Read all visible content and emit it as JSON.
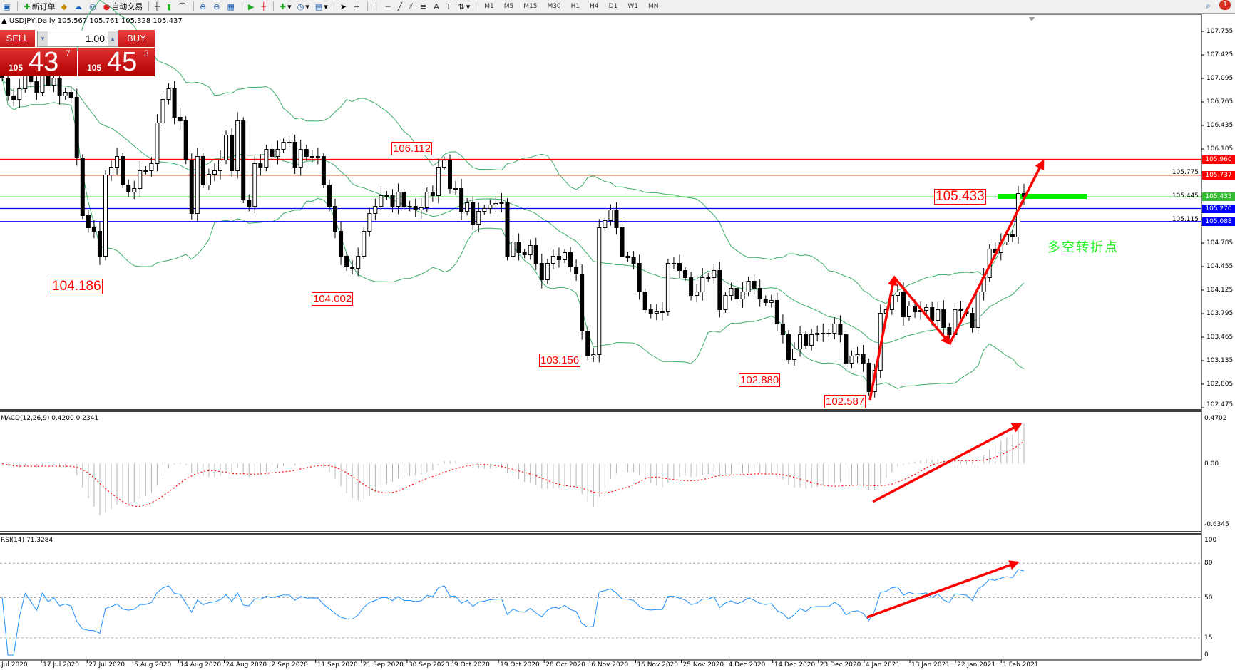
{
  "toolbar": {
    "new_order": "新订单",
    "auto_trading": "自动交易",
    "timeframes": [
      "M1",
      "M5",
      "M15",
      "M30",
      "H1",
      "H4",
      "D1",
      "W1",
      "MN"
    ],
    "notification_count": "1"
  },
  "chart": {
    "title": "USDJPY,Daily",
    "ohlc": "105.567 105.761 105.328 105.437"
  },
  "trade_panel": {
    "sell_label": "SELL",
    "buy_label": "BUY",
    "lot": "1.00",
    "sell_small": "105",
    "sell_main": "43",
    "sell_sup": "7",
    "buy_small": "105",
    "buy_main": "45",
    "buy_sup": "3"
  },
  "price_axis": {
    "ticks": [
      "107.755",
      "107.425",
      "107.095",
      "106.765",
      "106.435",
      "106.105",
      "105.775",
      "105.445",
      "105.115",
      "104.785",
      "104.455",
      "104.125",
      "103.795",
      "103.465",
      "103.135",
      "102.805",
      "102.475"
    ]
  },
  "levels": [
    {
      "price": "105.960",
      "color": "#ff0000"
    },
    {
      "price": "105.737",
      "color": "#ff0000"
    },
    {
      "price": "105.433",
      "color": "#33bb33"
    },
    {
      "price": "105.270",
      "color": "#0000ff"
    },
    {
      "price": "105.088",
      "color": "#0000ff"
    }
  ],
  "annotations": {
    "labels": [
      "104.186",
      "104.002",
      "103.156",
      "106.112",
      "102.880",
      "102.587",
      "105.433"
    ],
    "note": "多空转折点",
    "arrow_color": "#ff0000",
    "marker_color": "#00ee00"
  },
  "macd": {
    "label": "MACD(12,26,9) 0.4200 0.2341",
    "ticks": [
      "0.4702",
      "0.00",
      "-0.6345"
    ]
  },
  "rsi": {
    "label": "RSI(14) 71.3284",
    "ticks": [
      "100",
      "80",
      "50",
      "15",
      "0"
    ]
  },
  "dates": [
    "Jul 2020",
    "17 Jul 2020",
    "27 Jul 2020",
    "5 Aug 2020",
    "14 Aug 2020",
    "24 Aug 2020",
    "2 Sep 2020",
    "11 Sep 2020",
    "21 Sep 2020",
    "30 Sep 2020",
    "9 Oct 2020",
    "19 Oct 2020",
    "28 Oct 2020",
    "6 Nov 2020",
    "16 Nov 2020",
    "25 Nov 2020",
    "4 Dec 2020",
    "14 Dec 2020",
    "23 Dec 2020",
    "4 Jan 2021",
    "13 Jan 2021",
    "22 Jan 2021",
    "1 Feb 2021"
  ],
  "chart_data": {
    "type": "candlestick",
    "symbol": "USDJPY",
    "timeframe": "Daily",
    "ylim": [
      102.475,
      107.755
    ],
    "indicators": [
      "Bollinger Bands",
      "MACD(12,26,9)",
      "RSI(14)"
    ],
    "band_color": "#3cae6a",
    "close": [
      107.1,
      106.85,
      106.8,
      106.95,
      107.15,
      107.05,
      106.9,
      107.2,
      107.0,
      107.1,
      106.85,
      106.9,
      106.83,
      105.98,
      105.17,
      105.0,
      104.95,
      104.6,
      105.74,
      105.85,
      106.0,
      105.6,
      105.5,
      105.55,
      105.8,
      105.8,
      105.9,
      106.47,
      106.8,
      106.95,
      106.55,
      106.5,
      105.95,
      105.2,
      106.0,
      105.6,
      105.75,
      105.8,
      105.95,
      106.3,
      105.8,
      106.5,
      105.39,
      105.3,
      105.9,
      105.85,
      106.1,
      106.0,
      106.1,
      106.2,
      106.2,
      105.85,
      106.1,
      106.0,
      106.0,
      106.0,
      105.6,
      105.3,
      104.95,
      104.6,
      104.45,
      104.43,
      104.6,
      104.95,
      105.2,
      105.3,
      105.45,
      105.45,
      105.3,
      105.5,
      105.3,
      105.3,
      105.25,
      105.28,
      105.5,
      105.45,
      105.85,
      105.95,
      105.55,
      105.55,
      105.23,
      105.35,
      105.05,
      105.23,
      105.27,
      105.32,
      105.34,
      105.35,
      104.6,
      104.8,
      104.65,
      104.62,
      104.75,
      104.5,
      104.27,
      104.5,
      104.6,
      104.55,
      104.65,
      104.45,
      104.35,
      103.55,
      103.2,
      103.22,
      105.0,
      105.1,
      105.25,
      105.0,
      104.6,
      104.58,
      104.5,
      104.1,
      103.85,
      103.8,
      103.82,
      103.82,
      104.5,
      104.5,
      104.4,
      104.3,
      104.05,
      104.1,
      104.3,
      104.3,
      104.4,
      103.85,
      104.05,
      104.15,
      104.0,
      104.1,
      104.25,
      104.15,
      104.0,
      103.95,
      103.98,
      103.65,
      103.5,
      103.15,
      103.3,
      103.5,
      103.35,
      103.5,
      103.52,
      103.52,
      103.52,
      103.65,
      103.5,
      103.1,
      103.2,
      103.22,
      103.1,
      102.7,
      103.0,
      103.8,
      103.85,
      104.05,
      104.1,
      103.75,
      103.9,
      103.82,
      103.84,
      103.88,
      103.7,
      103.85,
      103.6,
      103.5,
      103.85,
      103.83,
      103.8,
      103.6,
      104.1,
      104.3,
      104.7,
      104.65,
      104.8,
      104.9,
      104.87,
      105.48,
      105.437
    ]
  }
}
